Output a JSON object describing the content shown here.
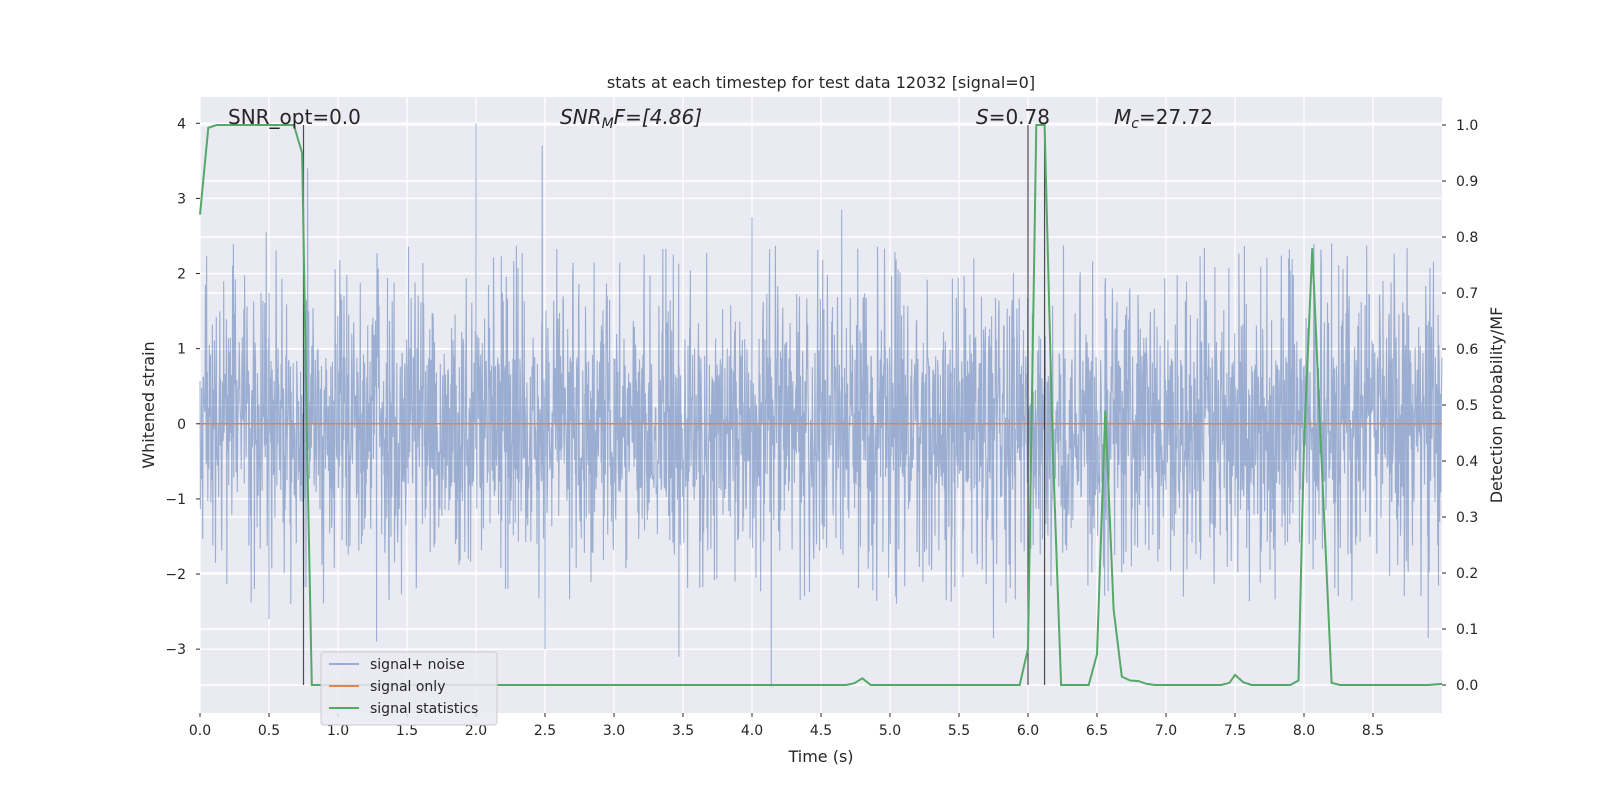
{
  "chart_data": {
    "type": "line",
    "title": "stats at each timestep for test data 12032 [signal=0]",
    "xlabel": "Time (s)",
    "ylabel_left": "Whitened strain",
    "ylabel_right": "Detection probability/MF",
    "xlim": [
      0.0,
      9.0
    ],
    "ylim_left": [
      -3.85,
      4.35
    ],
    "ylim_right": [
      -0.05,
      1.05
    ],
    "xticks": [
      "0.0",
      "0.5",
      "1.0",
      "1.5",
      "2.0",
      "2.5",
      "3.0",
      "3.5",
      "4.0",
      "4.5",
      "5.0",
      "5.5",
      "6.0",
      "6.5",
      "7.0",
      "7.5",
      "8.0",
      "8.5"
    ],
    "yticks_left": [
      "4",
      "3",
      "2",
      "1",
      "0",
      "−1",
      "−2",
      "−3"
    ],
    "yticks_right": [
      "1.0",
      "0.9",
      "0.8",
      "0.7",
      "0.6",
      "0.5",
      "0.4",
      "0.3",
      "0.2",
      "0.1",
      "0.0"
    ],
    "grid": true,
    "legend_position": "lower-left",
    "annotations": {
      "snr_opt": "SNR_opt=0.0",
      "snr_mf_label": "SNR",
      "snr_mf_sub": "M",
      "snr_mf_value": "F=[4.86]",
      "s_label": "S",
      "s_value": "=0.78",
      "mc_label": "M",
      "mc_sub": "c",
      "mc_value": "=27.72"
    },
    "vlines_x": [
      0.75,
      6.0,
      6.12
    ],
    "colors": {
      "noise": "#4c72b0",
      "signal_only": "#dd8452",
      "statistics": "#55a868",
      "background": "#eaeaf2",
      "grid": "#ffffff"
    },
    "series": [
      {
        "name": "signal+ noise",
        "band": {
          "inner": [
            -1.25,
            1.75
          ],
          "typical_peak": [
            -2.2,
            2.3
          ]
        },
        "spikes_up": [
          [
            2.0,
            4.0
          ],
          [
            2.48,
            3.7
          ],
          [
            0.78,
            3.4
          ],
          [
            4.65,
            2.85
          ],
          [
            4.0,
            2.75
          ],
          [
            0.48,
            2.55
          ],
          [
            8.2,
            2.4
          ]
        ],
        "spikes_down": [
          [
            4.14,
            -3.5
          ],
          [
            1.28,
            -2.9
          ],
          [
            2.5,
            -3.0
          ],
          [
            3.47,
            -3.1
          ],
          [
            0.5,
            -2.6
          ],
          [
            5.75,
            -2.85
          ],
          [
            8.9,
            -2.85
          ]
        ]
      },
      {
        "name": "signal only",
        "values_constant": 0.0
      },
      {
        "name": "signal statistics",
        "axis": "right",
        "points": [
          [
            0.0,
            0.84
          ],
          [
            0.06,
            0.995
          ],
          [
            0.12,
            1.0
          ],
          [
            0.68,
            1.0
          ],
          [
            0.74,
            0.95
          ],
          [
            0.78,
            0.38
          ],
          [
            0.81,
            0.0
          ],
          [
            4.68,
            0.0
          ],
          [
            4.74,
            0.003
          ],
          [
            4.8,
            0.012
          ],
          [
            4.86,
            0.0
          ],
          [
            5.94,
            0.0
          ],
          [
            6.0,
            0.065
          ],
          [
            6.06,
            1.0
          ],
          [
            6.12,
            1.0
          ],
          [
            6.18,
            0.42
          ],
          [
            6.24,
            0.0
          ],
          [
            6.44,
            0.0
          ],
          [
            6.5,
            0.055
          ],
          [
            6.56,
            0.49
          ],
          [
            6.62,
            0.135
          ],
          [
            6.68,
            0.015
          ],
          [
            6.74,
            0.008
          ],
          [
            6.8,
            0.007
          ],
          [
            6.86,
            0.002
          ],
          [
            6.92,
            0.0
          ],
          [
            7.4,
            0.0
          ],
          [
            7.46,
            0.004
          ],
          [
            7.5,
            0.018
          ],
          [
            7.56,
            0.005
          ],
          [
            7.62,
            0.0
          ],
          [
            7.9,
            0.0
          ],
          [
            7.96,
            0.008
          ],
          [
            8.0,
            0.43
          ],
          [
            8.06,
            0.78
          ],
          [
            8.12,
            0.44
          ],
          [
            8.2,
            0.004
          ],
          [
            8.26,
            0.0
          ],
          [
            8.9,
            0.0
          ],
          [
            9.0,
            0.002
          ]
        ]
      }
    ]
  }
}
